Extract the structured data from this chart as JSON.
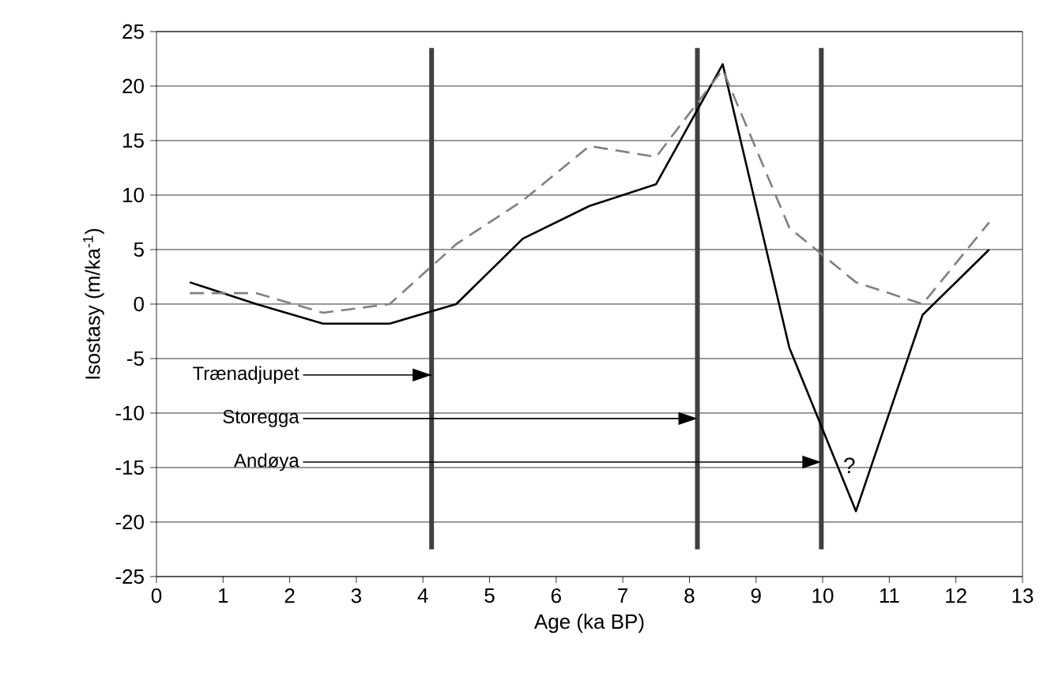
{
  "chart_data": {
    "type": "line",
    "xlabel": "Age (ka BP)",
    "ylabel": "Isostasy (m/ka$^{-1}$)",
    "x": [
      0.5,
      1.5,
      2.5,
      3.5,
      4.5,
      5.5,
      6.5,
      7.5,
      8.5,
      9.5,
      10.5,
      11.5,
      12.5
    ],
    "series": [
      {
        "color": "#000000",
        "line_style": "solid",
        "values": [
          2,
          0,
          -1.8,
          -1.8,
          0,
          6,
          9,
          11,
          22,
          -4,
          -19,
          -1,
          5
        ]
      },
      {
        "color": "#808080",
        "line_style": "dashed",
        "values": [
          1,
          1,
          -0.8,
          0,
          5.5,
          9.5,
          14.5,
          13.5,
          21.5,
          7,
          2,
          0,
          7.5
        ]
      }
    ],
    "xlim": [
      0,
      13
    ],
    "xticks": [
      0,
      1,
      2,
      3,
      4,
      5,
      6,
      7,
      8,
      9,
      10,
      11,
      12,
      13
    ],
    "ylim": [
      -25,
      25
    ],
    "yticks": [
      -25,
      -20,
      -15,
      -10,
      -5,
      0,
      5,
      10,
      15,
      20,
      25
    ],
    "grid": "y",
    "marker": "none",
    "ref_lines": [
      {
        "axis": "x",
        "value": 4.13,
        "color": "#404040"
      },
      {
        "axis": "x",
        "value": 8.12,
        "color": "#404040"
      },
      {
        "axis": "x",
        "value": 9.98,
        "color": "#404040"
      }
    ],
    "annotations": [
      {
        "text": "Trænadjupet",
        "x": 4.13,
        "y": -6.5
      },
      "Storegga",
      "Andøya",
      "?"
    ]
  }
}
